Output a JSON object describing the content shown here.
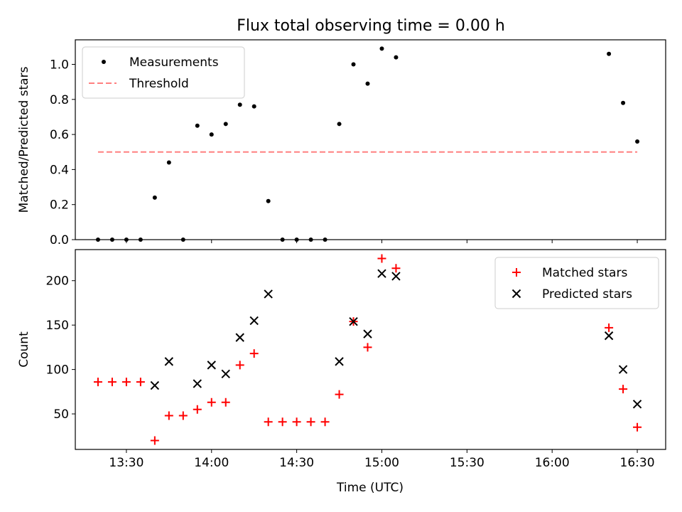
{
  "title": "Flux total observing time = 0.00 h",
  "chart_data": [
    {
      "type": "scatter",
      "ylabel": "Matched/Predicted stars",
      "ylim": [
        0,
        1.14
      ],
      "yticks": [
        0.0,
        0.2,
        0.4,
        0.6,
        0.8,
        1.0
      ],
      "ytick_labels": [
        "0.0",
        "0.2",
        "0.4",
        "0.6",
        "0.8",
        "1.0"
      ],
      "legend_position": "top-left",
      "series": [
        {
          "name": "Measurements",
          "color": "#000000",
          "marker": "dot",
          "x": [
            "13:20",
            "13:25",
            "13:30",
            "13:35",
            "13:40",
            "13:45",
            "13:50",
            "13:55",
            "14:00",
            "14:05",
            "14:10",
            "14:15",
            "14:20",
            "14:25",
            "14:30",
            "14:35",
            "14:40",
            "14:45",
            "14:50",
            "14:55",
            "15:00",
            "15:05",
            "16:20",
            "16:25",
            "16:30"
          ],
          "y": [
            0.0,
            0.0,
            0.0,
            0.0,
            0.24,
            0.44,
            0.0,
            0.65,
            0.6,
            0.66,
            0.77,
            0.76,
            0.22,
            0.0,
            0.0,
            0.0,
            0.0,
            0.66,
            1.0,
            0.89,
            1.09,
            1.04,
            1.06,
            0.78,
            0.56
          ]
        },
        {
          "name": "Threshold",
          "color": "#ff8080",
          "style": "dashed",
          "x": [
            "13:20",
            "16:30"
          ],
          "y": [
            0.5,
            0.5
          ]
        }
      ]
    },
    {
      "type": "scatter",
      "xlabel": "Time (UTC)",
      "ylabel": "Count",
      "xlim": [
        "13:12",
        "16:40"
      ],
      "ylim": [
        10,
        235
      ],
      "yticks": [
        50,
        100,
        150,
        200
      ],
      "ytick_labels": [
        "50",
        "100",
        "150",
        "200"
      ],
      "xticks": [
        "13:30",
        "14:00",
        "14:30",
        "15:00",
        "15:30",
        "16:00",
        "16:30"
      ],
      "legend_position": "top-right",
      "series": [
        {
          "name": "Matched stars",
          "color": "#ff0000",
          "marker": "plus",
          "x": [
            "13:20",
            "13:25",
            "13:30",
            "13:35",
            "13:40",
            "13:45",
            "13:50",
            "13:55",
            "14:00",
            "14:05",
            "14:10",
            "14:15",
            "14:20",
            "14:25",
            "14:30",
            "14:35",
            "14:40",
            "14:45",
            "14:50",
            "14:55",
            "15:00",
            "15:05",
            "16:20",
            "16:25",
            "16:30"
          ],
          "y": [
            86,
            86,
            86,
            86,
            20,
            48,
            48,
            55,
            63,
            63,
            105,
            118,
            41,
            41,
            41,
            41,
            41,
            72,
            154,
            125,
            225,
            214,
            147,
            78,
            35
          ]
        },
        {
          "name": "Predicted stars",
          "color": "#000000",
          "marker": "x",
          "x": [
            "13:40",
            "13:45",
            "13:55",
            "14:00",
            "14:05",
            "14:10",
            "14:15",
            "14:20",
            "14:45",
            "14:50",
            "14:55",
            "15:00",
            "15:05",
            "16:20",
            "16:25",
            "16:30"
          ],
          "y": [
            82,
            109,
            84,
            105,
            95,
            136,
            155,
            185,
            109,
            154,
            140,
            208,
            205,
            138,
            100,
            61
          ]
        }
      ]
    }
  ]
}
